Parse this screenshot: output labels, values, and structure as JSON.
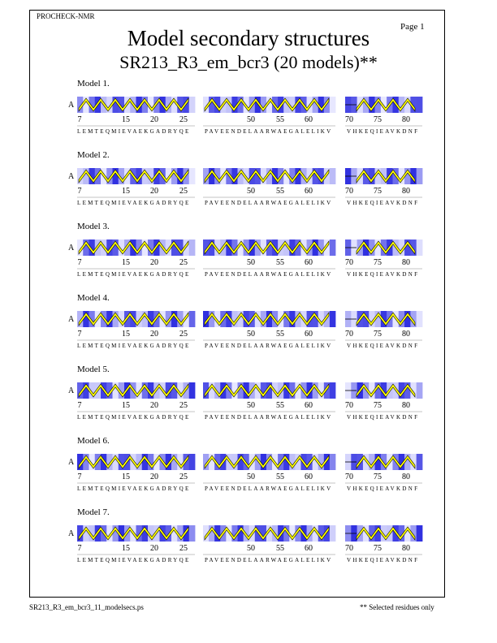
{
  "header": {
    "program": "PROCHECK-NMR",
    "page": "Page  1"
  },
  "title": "Model secondary structures",
  "subtitle": "SR213_R3_em_bcr3 (20 models)**",
  "chain": "A",
  "segments": [
    {
      "ticks": [
        "7",
        "15",
        "20",
        "25"
      ],
      "sequence": "LEMTEQMIEVAEKGADRYQE"
    },
    {
      "ticks": [
        "50",
        "55",
        "60"
      ],
      "sequence": "PAVEENDELAARWAEGALELIKV"
    },
    {
      "ticks": [
        "70",
        "75",
        "80"
      ],
      "sequence": "VHKEQIEAVKDNF"
    }
  ],
  "models": [
    {
      "label": "Model  1."
    },
    {
      "label": "Model  2."
    },
    {
      "label": "Model  3."
    },
    {
      "label": "Model  4."
    },
    {
      "label": "Model  5."
    },
    {
      "label": "Model  6."
    },
    {
      "label": "Model  7."
    }
  ],
  "colors": {
    "helix": "#ffff00",
    "strip_dark": "#3030e0",
    "strip_light": "#e8e8ff"
  },
  "footer": {
    "file": "SR213_R3_em_bcr3_11_modelsecs.ps",
    "note": "** Selected residues only"
  }
}
